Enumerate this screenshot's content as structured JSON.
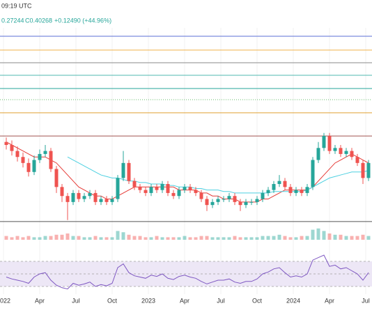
{
  "chart_data": {
    "type": "candlestick",
    "header": {
      "time": "09:19 UTC",
      "low": "0.27244",
      "close": "C0.40268",
      "change": "+0.12490 (+44.96%)"
    },
    "x": [
      1,
      3,
      5,
      7,
      9,
      11,
      13,
      15,
      17,
      19,
      21,
      23,
      25,
      27,
      29,
      31,
      33,
      35,
      37,
      39,
      41,
      43,
      45,
      47,
      49,
      51,
      53,
      55,
      57,
      59,
      61,
      63,
      65,
      67,
      69,
      71,
      73,
      75,
      77,
      79,
      81,
      83,
      85,
      87,
      89,
      91,
      93,
      95,
      97,
      99,
      101,
      103,
      105,
      107,
      109,
      111,
      113,
      115,
      117,
      119,
      121,
      123,
      125,
      127,
      129,
      131
    ],
    "xlim": [
      -1.25,
      132.25
    ],
    "xticks": [
      {
        "value": 0,
        "label": "2022"
      },
      {
        "value": 13,
        "label": "Apr"
      },
      {
        "value": 26,
        "label": "Jul"
      },
      {
        "value": 39,
        "label": "Oct"
      },
      {
        "value": 52,
        "label": "2023"
      },
      {
        "value": 65,
        "label": "Apr"
      },
      {
        "value": 78,
        "label": "Jul"
      },
      {
        "value": 91,
        "label": "Oct"
      },
      {
        "value": 104,
        "label": "2024"
      },
      {
        "value": 117,
        "label": "Apr"
      },
      {
        "value": 130,
        "label": "Jul"
      }
    ],
    "ylim": [
      0.2,
      0.85
    ],
    "open": [
      0.47,
      0.46,
      0.44,
      0.42,
      0.4,
      0.37,
      0.41,
      0.43,
      0.44,
      0.38,
      0.32,
      0.29,
      0.27,
      0.3,
      0.28,
      0.29,
      0.3,
      0.27,
      0.28,
      0.27,
      0.28,
      0.35,
      0.4,
      0.34,
      0.32,
      0.31,
      0.3,
      0.32,
      0.31,
      0.33,
      0.3,
      0.29,
      0.31,
      0.32,
      0.31,
      0.3,
      0.28,
      0.26,
      0.27,
      0.28,
      0.28,
      0.29,
      0.27,
      0.26,
      0.27,
      0.27,
      0.28,
      0.3,
      0.31,
      0.33,
      0.34,
      0.32,
      0.3,
      0.31,
      0.3,
      0.32,
      0.41,
      0.45,
      0.49,
      0.44,
      0.45,
      0.43,
      0.44,
      0.42,
      0.4,
      0.35
    ],
    "high": [
      0.485,
      0.475,
      0.455,
      0.435,
      0.415,
      0.425,
      0.445,
      0.46,
      0.45,
      0.39,
      0.33,
      0.3,
      0.31,
      0.31,
      0.3,
      0.31,
      0.31,
      0.29,
      0.29,
      0.29,
      0.36,
      0.44,
      0.41,
      0.35,
      0.33,
      0.32,
      0.33,
      0.33,
      0.34,
      0.34,
      0.31,
      0.32,
      0.33,
      0.33,
      0.32,
      0.31,
      0.29,
      0.28,
      0.29,
      0.29,
      0.3,
      0.3,
      0.28,
      0.28,
      0.28,
      0.29,
      0.31,
      0.32,
      0.34,
      0.36,
      0.35,
      0.33,
      0.32,
      0.32,
      0.33,
      0.42,
      0.47,
      0.5,
      0.5,
      0.46,
      0.46,
      0.45,
      0.45,
      0.43,
      0.41,
      0.41
    ],
    "low": [
      0.445,
      0.425,
      0.405,
      0.385,
      0.355,
      0.36,
      0.4,
      0.42,
      0.37,
      0.3,
      0.27,
      0.21,
      0.26,
      0.27,
      0.27,
      0.28,
      0.26,
      0.26,
      0.26,
      0.26,
      0.27,
      0.34,
      0.33,
      0.31,
      0.3,
      0.29,
      0.29,
      0.3,
      0.3,
      0.29,
      0.28,
      0.28,
      0.3,
      0.3,
      0.29,
      0.27,
      0.24,
      0.25,
      0.26,
      0.27,
      0.27,
      0.26,
      0.24,
      0.25,
      0.26,
      0.26,
      0.27,
      0.29,
      0.3,
      0.32,
      0.31,
      0.29,
      0.29,
      0.29,
      0.29,
      0.31,
      0.4,
      0.44,
      0.43,
      0.43,
      0.42,
      0.42,
      0.41,
      0.39,
      0.33,
      0.34
    ],
    "close": [
      0.46,
      0.44,
      0.42,
      0.4,
      0.37,
      0.41,
      0.43,
      0.44,
      0.38,
      0.32,
      0.29,
      0.27,
      0.3,
      0.28,
      0.29,
      0.3,
      0.27,
      0.28,
      0.27,
      0.28,
      0.35,
      0.4,
      0.34,
      0.32,
      0.31,
      0.3,
      0.32,
      0.31,
      0.33,
      0.3,
      0.29,
      0.31,
      0.32,
      0.31,
      0.3,
      0.28,
      0.26,
      0.27,
      0.28,
      0.28,
      0.29,
      0.27,
      0.26,
      0.27,
      0.27,
      0.28,
      0.3,
      0.31,
      0.33,
      0.34,
      0.32,
      0.3,
      0.31,
      0.3,
      0.32,
      0.41,
      0.45,
      0.49,
      0.44,
      0.45,
      0.43,
      0.44,
      0.42,
      0.4,
      0.35,
      0.4
    ],
    "up_color": "#26a69a",
    "down_color": "#ef5350",
    "levels": [
      {
        "value": 0.822,
        "color": "#5b6fd6",
        "style": "solid"
      },
      {
        "value": 0.776,
        "color": "#f0b24a",
        "style": "solid"
      },
      {
        "value": 0.734,
        "color": "#8a8a8a",
        "style": "solid"
      },
      {
        "value": 0.692,
        "color": "#4fb8b0",
        "style": "solid"
      },
      {
        "value": 0.648,
        "color": "#26a69a",
        "style": "solid"
      },
      {
        "value": 0.611,
        "color": "#66bb6a",
        "style": "dotted"
      },
      {
        "value": 0.567,
        "color": "#e0a030",
        "style": "solid"
      },
      {
        "value": 0.49,
        "color": "#a0524f",
        "style": "solid"
      },
      {
        "value": 0.205,
        "color": "#555555",
        "style": "solid"
      }
    ],
    "overlays": [
      {
        "color": "#e53935",
        "values": [
          0.47,
          0.46,
          0.45,
          0.44,
          0.43,
          0.42,
          0.42,
          0.42,
          0.41,
          0.4,
          0.38,
          0.36,
          0.34,
          0.32,
          0.31,
          0.3,
          0.29,
          0.29,
          0.28,
          0.28,
          0.29,
          0.3,
          0.31,
          0.32,
          0.32,
          0.32,
          0.32,
          0.32,
          0.32,
          0.32,
          0.32,
          0.31,
          0.31,
          0.31,
          0.31,
          0.3,
          0.3,
          0.29,
          0.29,
          0.28,
          0.28,
          0.28,
          0.27,
          0.27,
          0.27,
          0.27,
          0.28,
          0.28,
          0.29,
          0.3,
          0.31,
          0.31,
          0.31,
          0.31,
          0.31,
          0.32,
          0.34,
          0.36,
          0.38,
          0.4,
          0.41,
          0.42,
          0.43,
          0.42,
          0.41,
          0.4
        ]
      },
      {
        "color": "#4dd0e1",
        "values": [
          null,
          null,
          null,
          null,
          null,
          null,
          null,
          null,
          null,
          null,
          null,
          0.42,
          0.41,
          0.4,
          0.39,
          0.38,
          0.37,
          0.36,
          0.355,
          0.35,
          0.35,
          0.345,
          0.34,
          0.34,
          0.335,
          0.335,
          0.33,
          0.33,
          0.33,
          0.325,
          0.325,
          0.32,
          0.32,
          0.32,
          0.315,
          0.315,
          0.31,
          0.31,
          0.31,
          0.305,
          0.305,
          0.3,
          0.3,
          0.3,
          0.3,
          0.3,
          0.3,
          0.3,
          0.305,
          0.305,
          0.305,
          0.305,
          0.305,
          0.305,
          0.31,
          0.32,
          0.33,
          0.34,
          0.35,
          0.355,
          0.36,
          0.365,
          0.37,
          0.37,
          0.37,
          0.375
        ]
      }
    ],
    "volume": {
      "ylim": [
        0,
        10
      ],
      "values": [
        3,
        2,
        3,
        2,
        3,
        2,
        2,
        3,
        3,
        4,
        4,
        5,
        3,
        3,
        2,
        2,
        3,
        2,
        2,
        2,
        7,
        6,
        4,
        3,
        3,
        2,
        2,
        3,
        2,
        2,
        2,
        2,
        3,
        2,
        2,
        3,
        3,
        2,
        2,
        2,
        2,
        3,
        2,
        2,
        2,
        2,
        3,
        3,
        3,
        4,
        3,
        2,
        2,
        3,
        3,
        8,
        9,
        7,
        5,
        4,
        4,
        3,
        3,
        3,
        4,
        3
      ]
    },
    "rsi": {
      "ylim": [
        20,
        80
      ],
      "bands": [
        30,
        50,
        70
      ],
      "color": "#7e57c2",
      "fill": "#ede7f6",
      "values": [
        45,
        42,
        40,
        38,
        35,
        45,
        50,
        52,
        40,
        32,
        28,
        26,
        35,
        32,
        34,
        37,
        30,
        33,
        31,
        35,
        60,
        66,
        52,
        47,
        45,
        43,
        48,
        46,
        50,
        43,
        41,
        46,
        48,
        45,
        43,
        38,
        34,
        37,
        40,
        40,
        42,
        37,
        35,
        38,
        38,
        42,
        50,
        53,
        58,
        60,
        52,
        45,
        47,
        45,
        50,
        72,
        76,
        80,
        62,
        64,
        58,
        60,
        55,
        50,
        40,
        52
      ]
    }
  }
}
